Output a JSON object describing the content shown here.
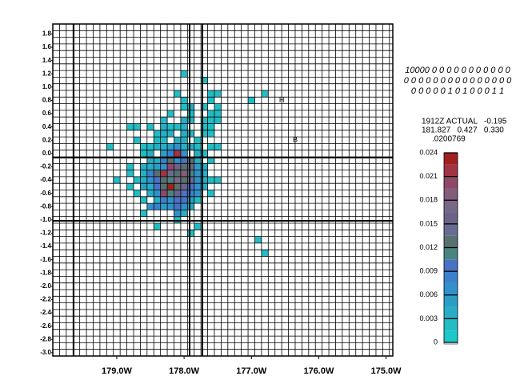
{
  "chart_data": {
    "type": "heatmap",
    "xlim": [
      -179.95,
      -174.9
    ],
    "ylim": [
      -3.05,
      1.95
    ],
    "xticks": [
      {
        "value": -179,
        "label": "179.0W"
      },
      {
        "value": -178,
        "label": "178.0W"
      },
      {
        "value": -177,
        "label": "177.0W"
      },
      {
        "value": -176,
        "label": "176.0W"
      },
      {
        "value": -175,
        "label": "175.0W"
      }
    ],
    "yticks": [
      1.8,
      1.6,
      1.4,
      1.2,
      {
        "value": 1,
        "label": "1.0"
      },
      0.8,
      0.6,
      0.4,
      0.2,
      {
        "value": 0,
        "label": "0.0"
      },
      -0.2,
      -0.4,
      -0.6,
      -0.8,
      {
        "value": -1,
        "label": "-1.0"
      },
      -1.2,
      -1.4,
      -1.6,
      -1.8,
      {
        "value": -2,
        "label": "-2.0"
      },
      -2.2,
      -2.4,
      -2.6,
      -2.8,
      {
        "value": -3,
        "label": "-3.0"
      }
    ],
    "grid": true,
    "rows": [
      {
        "y": 1.2,
        "x": [
          -178.0
        ],
        "values": [
          0.002
        ]
      },
      {
        "y": 1.1,
        "x": [
          -177.7
        ],
        "values": [
          0.002
        ]
      },
      {
        "y": 0.9,
        "x": [
          -178.1,
          -177.6,
          -177.5,
          -176.8
        ],
        "values": [
          0.002,
          0.002,
          0.002,
          0.002
        ]
      },
      {
        "y": 0.8,
        "x": [
          -178.0,
          -177.6,
          -177.0
        ],
        "values": [
          0.002,
          0.002,
          0.002
        ]
      },
      {
        "y": 0.7,
        "x": [
          -178.0,
          -177.9,
          -177.7,
          -177.5
        ],
        "values": [
          0.002,
          0.003,
          0.002,
          0.002
        ]
      },
      {
        "y": 0.6,
        "x": [
          -178.2,
          -177.9,
          -177.6,
          -177.5
        ],
        "values": [
          0.002,
          0.002,
          0.002,
          0.002
        ]
      },
      {
        "y": 0.5,
        "x": [
          -178.3,
          -178.0,
          -177.9,
          -177.7,
          -177.6,
          -177.5
        ],
        "values": [
          0.002,
          0.003,
          0.002,
          0.002,
          0.002,
          0.002
        ]
      },
      {
        "y": 0.4,
        "x": [
          -178.8,
          -178.7,
          -178.5,
          -178.3,
          -178.2,
          -178.1,
          -178.0,
          -177.7,
          -177.6
        ],
        "values": [
          0.002,
          0.002,
          0.002,
          0.003,
          0.002,
          0.002,
          0.003,
          0.002,
          0.002
        ]
      },
      {
        "y": 0.3,
        "x": [
          -178.4,
          -178.3,
          -178.2,
          -178.0,
          -177.9,
          -177.7,
          -177.6
        ],
        "values": [
          0.002,
          0.003,
          0.004,
          0.004,
          0.002,
          0.002,
          0.002
        ]
      },
      {
        "y": 0.2,
        "x": [
          -178.7,
          -178.4,
          -178.3,
          -178.1,
          -178.0,
          -177.8
        ],
        "values": [
          0.002,
          0.002,
          0.002,
          0.003,
          0.004,
          0.002
        ]
      },
      {
        "y": 0.1,
        "x": [
          -179.1,
          -178.6,
          -178.5,
          -178.4,
          -178.3,
          -178.2,
          -178.1,
          -178.0,
          -177.9,
          -177.8,
          -177.6,
          -177.5
        ],
        "values": [
          0.002,
          0.002,
          0.002,
          0.003,
          0.004,
          0.005,
          0.006,
          0.004,
          0.003,
          0.002,
          0.002,
          0.002
        ]
      },
      {
        "y": 0.0,
        "x": [
          -178.6,
          -178.5,
          -178.3,
          -178.2,
          -178.1,
          -178.0,
          -177.8,
          -177.7
        ],
        "values": [
          0.002,
          0.003,
          0.005,
          0.008,
          0.022,
          0.006,
          0.003,
          0.002
        ]
      },
      {
        "y": -0.1,
        "x": [
          -178.5,
          -178.4,
          -178.3,
          -178.2,
          -178.1,
          -178.0,
          -177.9,
          -177.8,
          -177.6
        ],
        "values": [
          0.003,
          0.004,
          0.008,
          0.012,
          0.006,
          0.01,
          0.012,
          0.004,
          0.002
        ]
      },
      {
        "y": -0.2,
        "x": [
          -178.8,
          -178.6,
          -178.5,
          -178.4,
          -178.3,
          -178.2,
          -178.1,
          -178.0,
          -177.9,
          -177.8,
          -177.7
        ],
        "values": [
          0.002,
          0.003,
          0.004,
          0.005,
          0.007,
          0.02,
          0.015,
          0.012,
          0.016,
          0.005,
          0.003
        ]
      },
      {
        "y": -0.3,
        "x": [
          -178.8,
          -178.6,
          -178.5,
          -178.4,
          -178.3,
          -178.2,
          -178.1,
          -178.0,
          -177.9,
          -177.8,
          -177.7
        ],
        "values": [
          0.002,
          0.004,
          0.008,
          0.012,
          0.021,
          0.014,
          0.013,
          0.018,
          0.011,
          0.006,
          0.003
        ]
      },
      {
        "y": -0.4,
        "x": [
          -179.0,
          -178.7,
          -178.6,
          -178.5,
          -178.4,
          -178.3,
          -178.2,
          -178.1,
          -178.0,
          -177.9,
          -177.8,
          -177.7,
          -177.6,
          -177.5
        ],
        "values": [
          0.002,
          0.002,
          0.004,
          0.006,
          0.009,
          0.013,
          0.011,
          0.017,
          0.012,
          0.014,
          0.007,
          0.004,
          0.002,
          0.002
        ]
      },
      {
        "y": -0.5,
        "x": [
          -178.8,
          -178.6,
          -178.5,
          -178.4,
          -178.3,
          -178.2,
          -178.1,
          -178.0,
          -177.9,
          -177.8,
          -177.7
        ],
        "values": [
          0.002,
          0.005,
          0.004,
          0.009,
          0.012,
          0.023,
          0.012,
          0.015,
          0.009,
          0.007,
          0.003
        ]
      },
      {
        "y": -0.6,
        "x": [
          -178.7,
          -178.5,
          -178.4,
          -178.3,
          -178.2,
          -178.1,
          -178.0,
          -177.9,
          -177.8,
          -177.6
        ],
        "values": [
          0.002,
          0.004,
          0.006,
          0.02,
          0.011,
          0.015,
          0.009,
          0.008,
          0.006,
          0.002
        ]
      },
      {
        "y": -0.7,
        "x": [
          -178.6,
          -178.4,
          -178.3,
          -178.2,
          -178.1,
          -178.0,
          -177.9,
          -177.8
        ],
        "values": [
          0.002,
          0.004,
          0.008,
          0.007,
          0.01,
          0.009,
          0.005,
          0.002
        ]
      },
      {
        "y": -0.8,
        "x": [
          -178.5,
          -178.4,
          -178.3,
          -178.2,
          -178.1,
          -178.0,
          -177.9
        ],
        "values": [
          0.007,
          0.008,
          0.005,
          0.006,
          0.009,
          0.007,
          0.003
        ]
      },
      {
        "y": -0.9,
        "x": [
          -178.6,
          -178.1,
          -178.0
        ],
        "values": [
          0.002,
          0.006,
          0.003
        ]
      },
      {
        "y": -1.0,
        "x": [
          -178.1
        ],
        "values": [
          0.002
        ]
      },
      {
        "y": -1.1,
        "x": [
          -178.4,
          -177.8
        ],
        "values": [
          0.002,
          0.002
        ]
      },
      {
        "y": -1.2,
        "x": [
          -177.9
        ],
        "values": [
          0.002
        ]
      },
      {
        "y": -1.3,
        "x": [
          -176.9
        ],
        "values": [
          0.002
        ]
      },
      {
        "y": -1.5,
        "x": [
          -176.8
        ],
        "values": [
          0.002
        ]
      }
    ],
    "markers": [
      {
        "label": "H",
        "x": -176.55,
        "y": 0.8
      },
      {
        "label": "B",
        "x": -176.35,
        "y": 0.2
      }
    ],
    "colorscale": {
      "bounds": [
        0,
        0.0015,
        0.003,
        0.0045,
        0.006,
        0.0075,
        0.009,
        0.0105,
        0.012,
        0.0135,
        0.015,
        0.0165,
        0.018,
        0.0195,
        0.021,
        0.0225,
        0.024
      ],
      "colors": [
        "#1cc8c8",
        "#22bcc4",
        "#28aec4",
        "#2c9ec6",
        "#3290ca",
        "#3c80cc",
        "#4a72c4",
        "#4a8480",
        "#587070",
        "#686c90",
        "#6c6488",
        "#786888",
        "#845c7c",
        "#904868",
        "#a03444",
        "#a02020"
      ],
      "ticks": [
        0,
        0.003,
        0.006,
        0.009,
        0.012,
        0.015,
        0.018,
        0.021,
        0.024
      ]
    },
    "annotations": [
      "10000 0 0 0 0 0 0 0 0 0 0 0",
      "0 0 0 0 0 0 0 0 0 0 0 0 0 0 0",
      "0 0 0 0 0 1 0 1 0 0 0 1 1"
    ],
    "info": [
      "1912Z ACTUAL   -0.195",
      "181.827   0.427   0.330",
      ".0200769"
    ]
  }
}
